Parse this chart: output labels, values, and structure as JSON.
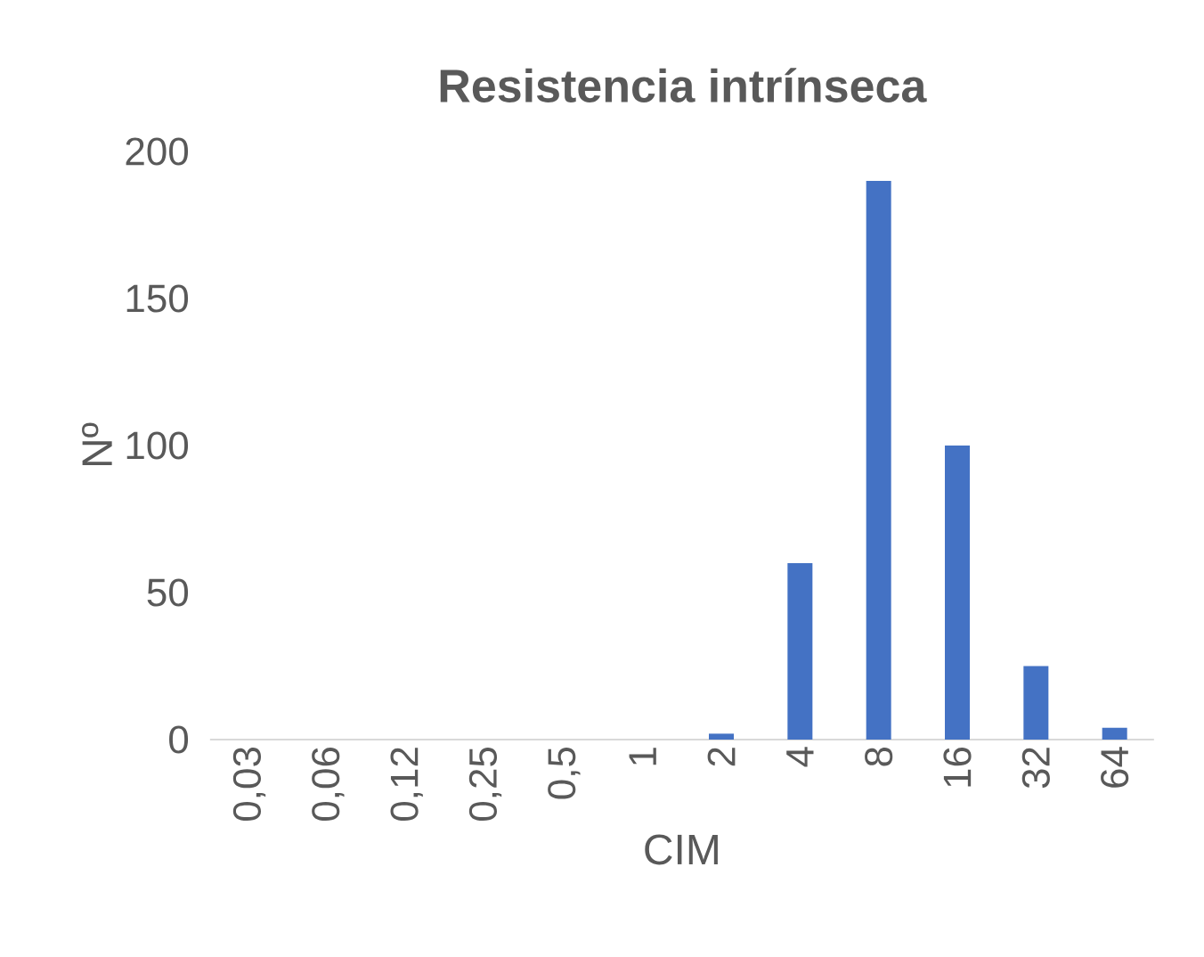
{
  "chart_data": {
    "type": "bar",
    "title": "Resistencia intrínseca",
    "xlabel": "CIM",
    "ylabel": "Nº",
    "categories": [
      "0,03",
      "0,06",
      "0,12",
      "0,25",
      "0,5",
      "1",
      "2",
      "4",
      "8",
      "16",
      "32",
      "64"
    ],
    "values": [
      0,
      0,
      0,
      0,
      0,
      0,
      2,
      60,
      190,
      100,
      25,
      4
    ],
    "color": "#4472c4",
    "ylim": [
      0,
      200
    ],
    "yticks": [
      0,
      50,
      100,
      150,
      200
    ]
  }
}
